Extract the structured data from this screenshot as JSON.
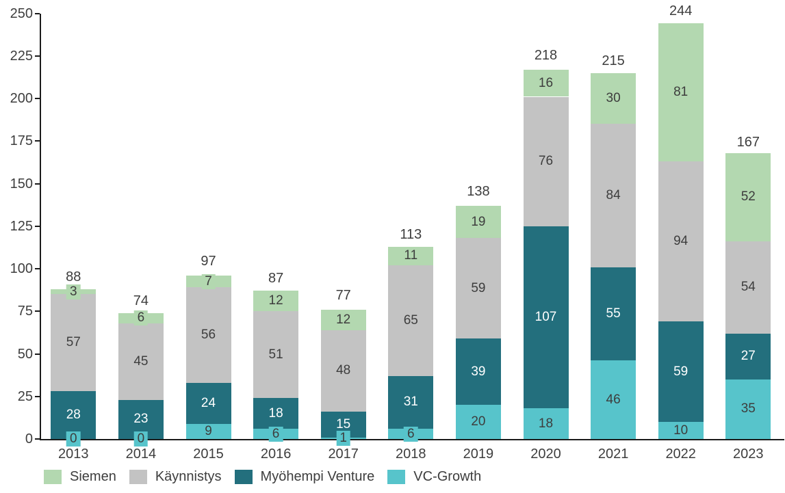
{
  "chart_data": {
    "type": "bar",
    "stacked": true,
    "title": "",
    "xlabel": "",
    "ylabel": "",
    "categories": [
      "2013",
      "2014",
      "2015",
      "2016",
      "2017",
      "2018",
      "2019",
      "2020",
      "2021",
      "2022",
      "2023"
    ],
    "series": [
      {
        "name": "Siemen",
        "color": "#b3d8b0",
        "label_color": "#3d3d3d",
        "values": [
          3,
          6,
          7,
          12,
          12,
          11,
          19,
          16,
          30,
          81,
          52
        ]
      },
      {
        "name": "Käynnistys",
        "color": "#c3c3c3",
        "label_color": "#3d3d3d",
        "values": [
          57,
          45,
          56,
          51,
          48,
          65,
          59,
          76,
          84,
          94,
          54
        ]
      },
      {
        "name": "Myöhempi Venture",
        "color": "#236f7d",
        "label_color": "#ffffff",
        "values": [
          28,
          23,
          24,
          18,
          15,
          31,
          39,
          107,
          55,
          59,
          27
        ]
      },
      {
        "name": "VC-Growth",
        "color": "#57c4cb",
        "label_color": "#3d3d3d",
        "values": [
          0,
          0,
          9,
          6,
          1,
          6,
          20,
          18,
          46,
          10,
          35
        ]
      }
    ],
    "stack_order_bottom_to_top": [
      "VC-Growth",
      "Myöhempi Venture",
      "Käynnistys",
      "Siemen"
    ],
    "totals": [
      88,
      74,
      97,
      87,
      77,
      113,
      138,
      218,
      215,
      244,
      167
    ],
    "ylim": [
      0,
      250
    ],
    "ytick_step": 25,
    "ytick_labels": [
      "0",
      "25",
      "50",
      "75",
      "100",
      "125",
      "150",
      "175",
      "200",
      "225",
      "250"
    ],
    "grid": false,
    "legend_position": "bottom",
    "axis_color": "#1a1a1a",
    "text_color": "#3d3d3d"
  }
}
